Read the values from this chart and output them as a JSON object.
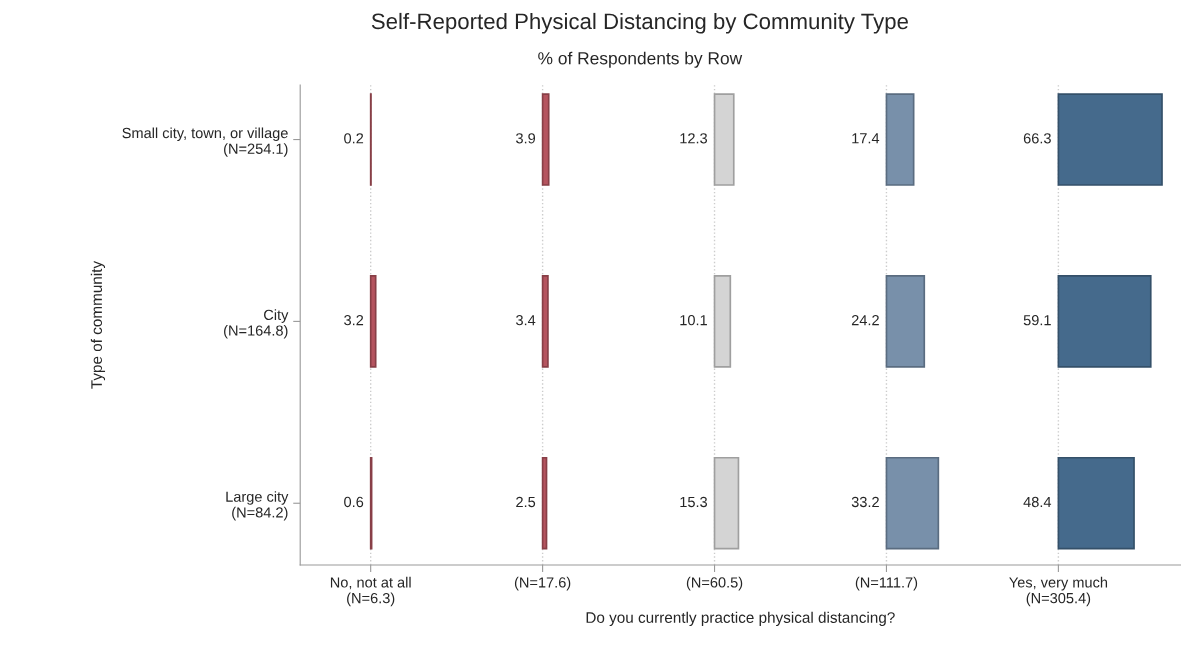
{
  "chart_data": {
    "type": "heatmap",
    "title": "Self-Reported Physical Distancing by Community Type",
    "subtitle": "% of Respondents by Row",
    "xlabel": "Do you currently practice physical distancing?",
    "ylabel": "Type of community",
    "categories": [
      "No, not at all\n(N=6.3)",
      "(N=17.6)",
      "(N=60.5)",
      "(N=111.7)",
      "Yes, very much\n(N=305.4)"
    ],
    "y_categories": [
      "Small city, town, or village\n(N=254.1)",
      "City\n(N=164.8)",
      "Large city\n(N=84.2)"
    ],
    "cells": [
      [
        0.2,
        3.9,
        12.3,
        17.4,
        66.3
      ],
      [
        3.2,
        3.4,
        10.1,
        24.2,
        59.1
      ],
      [
        0.6,
        2.5,
        15.3,
        33.2,
        48.4
      ]
    ],
    "colors": [
      "#b5545f",
      "#b5545f",
      "#d4d4d4",
      "#7890aa",
      "#456a8c"
    ],
    "data_labels": true,
    "grid": "x"
  }
}
